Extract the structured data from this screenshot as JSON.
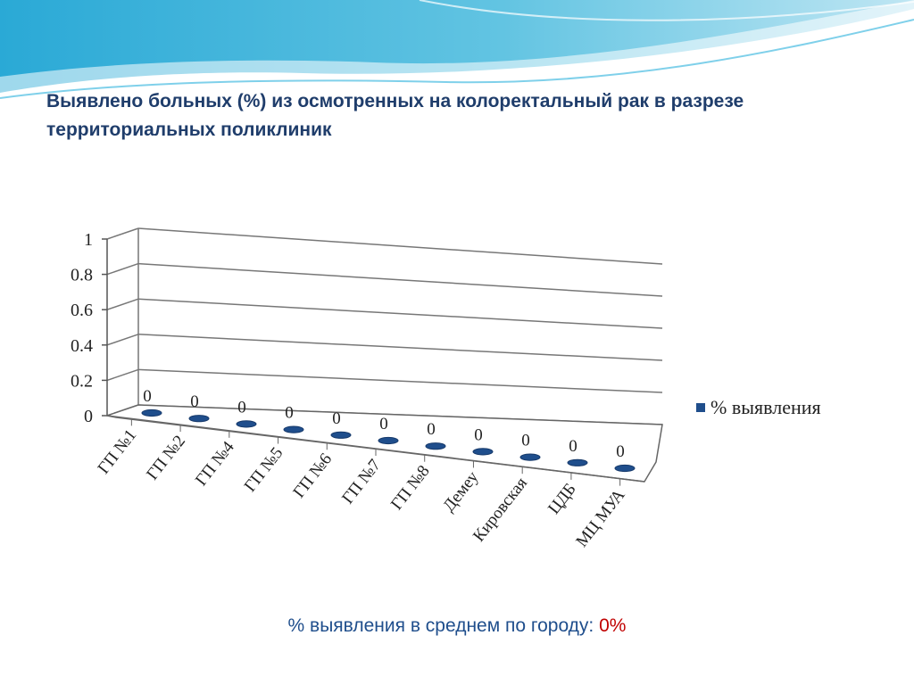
{
  "slide": {
    "title": "Выявлено больных (%) из осмотренных на колоректальный рак в разрезе территориальных поликлиник",
    "footer_label": "% выявления в среднем по городу: ",
    "footer_value": "0%",
    "colors": {
      "title": "#1f3d6b",
      "footer_label": "#1f4e8c",
      "footer_value": "#c00000",
      "series": "#1f4e8c",
      "wave_light": "#bfe6f3",
      "wave_mid": "#62c4e2",
      "wave_dark": "#2aa9d6"
    }
  },
  "chart_data": {
    "type": "bar",
    "title": "",
    "xlabel": "",
    "ylabel": "",
    "categories": [
      "ГП №1",
      "ГП №2",
      "ГП №4",
      "ГП №5",
      "ГП №6",
      "ГП  №7",
      "ГП №8",
      "Демеу",
      "Кировская",
      "ЦДБ",
      "МЦ МУА"
    ],
    "series": [
      {
        "name": "% выявления",
        "values": [
          0,
          0,
          0,
          0,
          0,
          0,
          0,
          0,
          0,
          0,
          0
        ]
      }
    ],
    "data_labels": [
      "0",
      "0",
      "0",
      "0",
      "0",
      "0",
      "0",
      "0",
      "0",
      "0",
      "0"
    ],
    "y_ticks": [
      "0",
      "0.2",
      "0.4",
      "0.6",
      "0.8",
      "1"
    ],
    "ylim": [
      0,
      1
    ],
    "grid": true,
    "style": "3d-perspective",
    "legend_position": "right"
  }
}
